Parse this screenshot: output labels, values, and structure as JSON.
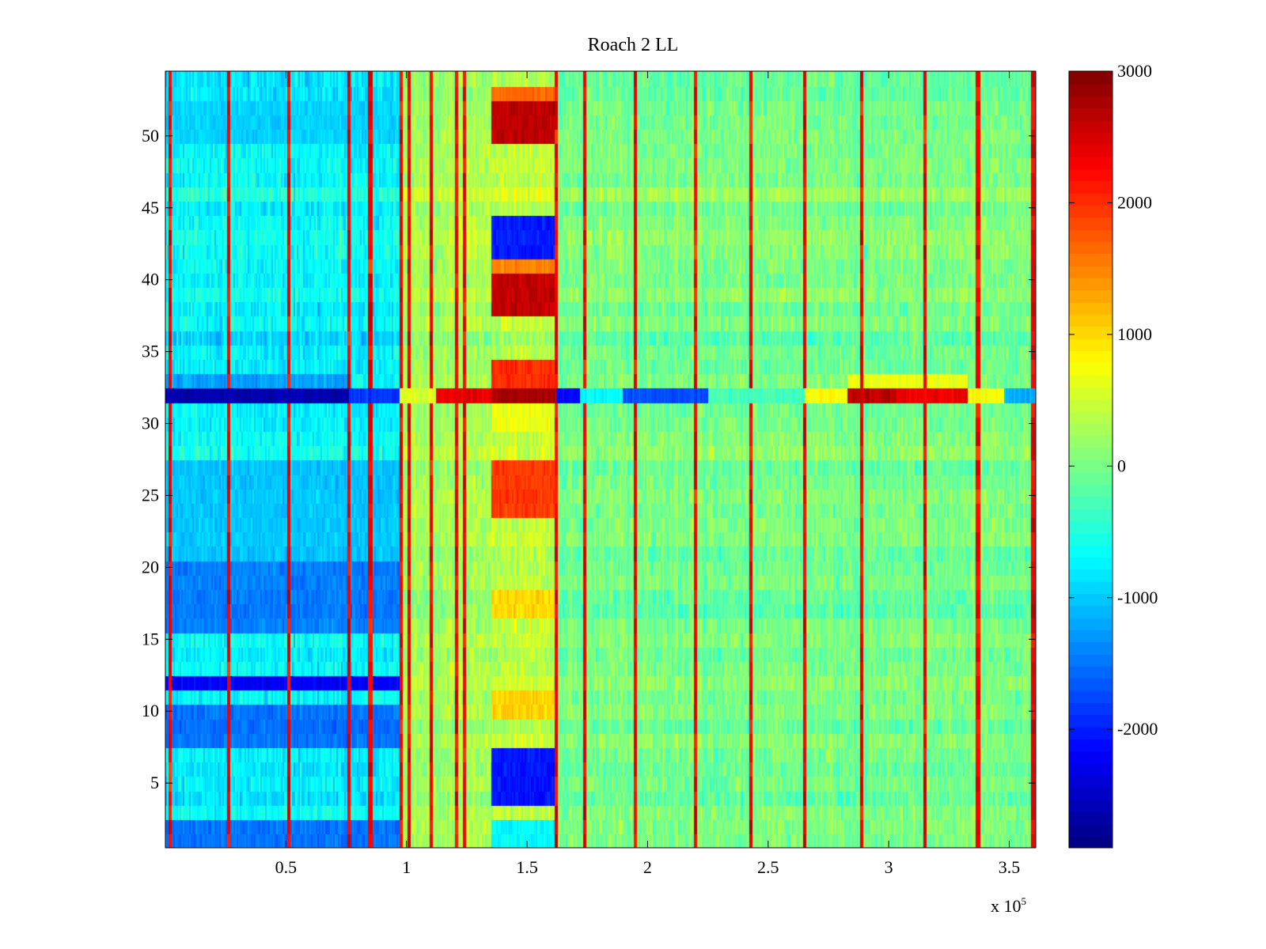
{
  "chart_data": {
    "type": "heatmap",
    "title": "Roach 2 LL",
    "xlabel": "",
    "ylabel": "",
    "x_range": [
      0,
      361000
    ],
    "y_range": [
      0.5,
      54.5
    ],
    "n_rows": 54,
    "x_ticks": [
      50000,
      100000,
      150000,
      200000,
      250000,
      300000,
      350000
    ],
    "x_tick_labels": [
      "0.5",
      "1",
      "1.5",
      "2",
      "2.5",
      "3",
      "3.5"
    ],
    "x_scale_label": "x 10",
    "x_scale_exponent": "5",
    "y_ticks": [
      5,
      10,
      15,
      20,
      25,
      30,
      35,
      40,
      45,
      50
    ],
    "y_tick_labels": [
      "5",
      "10",
      "15",
      "20",
      "25",
      "30",
      "35",
      "40",
      "45",
      "50"
    ],
    "colorbar": {
      "colormap": "jet",
      "range": [
        -2900,
        3000
      ],
      "ticks": [
        -2000,
        -1000,
        0,
        1000,
        2000,
        3000
      ],
      "tick_labels": [
        "-2000",
        "-1000",
        "0",
        "1000",
        "2000",
        "3000"
      ]
    },
    "features": {
      "column_region_means": [
        {
          "x_start": 0,
          "x_end": 97000,
          "value": -700
        },
        {
          "x_start": 97000,
          "x_end": 135000,
          "value": 300
        },
        {
          "x_start": 135000,
          "x_end": 162000,
          "value": 400
        },
        {
          "x_start": 162000,
          "x_end": 361000,
          "value": 0
        }
      ],
      "vertical_stripes_x": [
        2000,
        26000,
        51000,
        76000,
        85000,
        98000,
        101000,
        110000,
        121000,
        124000,
        162000,
        174000,
        195000,
        220000,
        243000,
        265000,
        289000,
        315000,
        337000,
        360000
      ],
      "vertical_stripe_value": 2300,
      "row_offsets": [
        {
          "rows": [
            1,
            2
          ],
          "x_range": [
            0,
            97000
          ],
          "value": -1700
        },
        {
          "rows": [
            8,
            9,
            10
          ],
          "x_range": [
            0,
            97000
          ],
          "value": -1700
        },
        {
          "rows": [
            12
          ],
          "x_range": [
            0,
            97000
          ],
          "value": -2600
        },
        {
          "rows": [
            16,
            17,
            18,
            19,
            20
          ],
          "x_range": [
            0,
            97000
          ],
          "value": -1600
        },
        {
          "rows": [
            21,
            22,
            23,
            24,
            25,
            26,
            27
          ],
          "x_range": [
            0,
            97000
          ],
          "value": -1100
        },
        {
          "rows": [
            50,
            51,
            52
          ],
          "x_range": [
            0,
            97000
          ],
          "value": -1000
        }
      ],
      "blocks": [
        {
          "rows": [
            1,
            2
          ],
          "x_range": [
            135000,
            162000
          ],
          "value": -800
        },
        {
          "rows": [
            4,
            5,
            6,
            7
          ],
          "x_range": [
            135000,
            162000
          ],
          "value": -2300
        },
        {
          "rows": [
            10,
            11
          ],
          "x_range": [
            135000,
            162000
          ],
          "value": 1100
        },
        {
          "rows": [
            17,
            18
          ],
          "x_range": [
            135000,
            162000
          ],
          "value": 1100
        },
        {
          "rows": [
            24,
            25,
            26,
            27
          ],
          "x_range": [
            135000,
            162000
          ],
          "value": 2100
        },
        {
          "rows": [
            33,
            34
          ],
          "x_range": [
            135000,
            162000
          ],
          "value": 2200
        },
        {
          "rows": [
            38,
            39,
            40
          ],
          "x_range": [
            135000,
            162000
          ],
          "value": 2850
        },
        {
          "rows": [
            41
          ],
          "x_range": [
            135000,
            162000
          ],
          "value": 1600
        },
        {
          "rows": [
            42,
            43,
            44
          ],
          "x_range": [
            135000,
            162000
          ],
          "value": -2300
        },
        {
          "rows": [
            50,
            51,
            52
          ],
          "x_range": [
            135000,
            162000
          ],
          "value": 2900
        },
        {
          "rows": [
            53
          ],
          "x_range": [
            135000,
            162000
          ],
          "value": 1800
        },
        {
          "rows": [
            30,
            31
          ],
          "x_range": [
            135000,
            162000
          ],
          "value": 700
        }
      ],
      "row_32_segments": [
        {
          "x_start": 0,
          "x_end": 76000,
          "value": -2700
        },
        {
          "x_start": 76000,
          "x_end": 97000,
          "value": -1900
        },
        {
          "x_start": 97000,
          "x_end": 112000,
          "value": 600
        },
        {
          "x_start": 112000,
          "x_end": 135000,
          "value": 2500
        },
        {
          "x_start": 135000,
          "x_end": 162000,
          "value": 2900
        },
        {
          "x_start": 162000,
          "x_end": 172000,
          "value": -2300
        },
        {
          "x_start": 172000,
          "x_end": 190000,
          "value": -700
        },
        {
          "x_start": 190000,
          "x_end": 225000,
          "value": -1800
        },
        {
          "x_start": 225000,
          "x_end": 265000,
          "value": -300
        },
        {
          "x_start": 265000,
          "x_end": 283000,
          "value": 800
        },
        {
          "x_start": 283000,
          "x_end": 303000,
          "value": 2800
        },
        {
          "x_start": 303000,
          "x_end": 333000,
          "value": 2500
        },
        {
          "x_start": 333000,
          "x_end": 348000,
          "value": 800
        },
        {
          "x_start": 348000,
          "x_end": 361000,
          "value": -1200
        }
      ],
      "row_33_segments": [
        {
          "x_start": 0,
          "x_end": 76000,
          "value": -1400
        },
        {
          "x_start": 283000,
          "x_end": 333000,
          "value": 900
        }
      ]
    }
  }
}
